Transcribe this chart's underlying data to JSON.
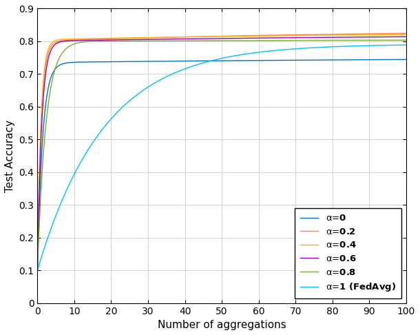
{
  "xlabel": "Number of aggregations",
  "ylabel": "Test Accuracy",
  "xlim": [
    0,
    100
  ],
  "ylim": [
    0,
    0.9
  ],
  "xticks": [
    0,
    10,
    20,
    30,
    40,
    50,
    60,
    70,
    80,
    90,
    100
  ],
  "yticks": [
    0,
    0.1,
    0.2,
    0.3,
    0.4,
    0.5,
    0.6,
    0.7,
    0.8,
    0.9
  ],
  "series": [
    {
      "label_prefix": "α=",
      "label_value": "0",
      "color": "#0072BD",
      "rise_rate": 2.5,
      "plateau1": 0.735,
      "plateau1_knee": 3.5,
      "plateau2": 0.752,
      "plateau2_rate": 0.008
    },
    {
      "label_prefix": "α=",
      "label_value": "0.2",
      "color": "#FF8040",
      "rise_rate": 3.0,
      "plateau1": 0.8,
      "plateau1_knee": 3.0,
      "plateau2": 0.835,
      "plateau2_rate": 0.012
    },
    {
      "label_prefix": "α=",
      "label_value": "0.4",
      "color": "#FFB000",
      "rise_rate": 3.0,
      "plateau1": 0.805,
      "plateau1_knee": 2.8,
      "plateau2": 0.83,
      "plateau2_rate": 0.01
    },
    {
      "label_prefix": "α=",
      "label_value": "0.6",
      "color": "#9400D3",
      "rise_rate": 2.8,
      "plateau1": 0.8,
      "plateau1_knee": 3.2,
      "plateau2": 0.822,
      "plateau2_rate": 0.01
    },
    {
      "label_prefix": "α=",
      "label_value": "0.8",
      "color": "#77AC30",
      "rise_rate": 2.2,
      "plateau1": 0.8,
      "plateau1_knee": 5.0,
      "plateau2": 0.808,
      "plateau2_rate": 0.006
    },
    {
      "label_prefix": "α=",
      "label_value": "1 (FedAvg)",
      "color": "#00BFFF",
      "rise_rate": 1.0,
      "plateau1": 0.79,
      "plateau1_knee": 18.0,
      "plateau2": 0.795,
      "plateau2_rate": 0.004
    }
  ]
}
